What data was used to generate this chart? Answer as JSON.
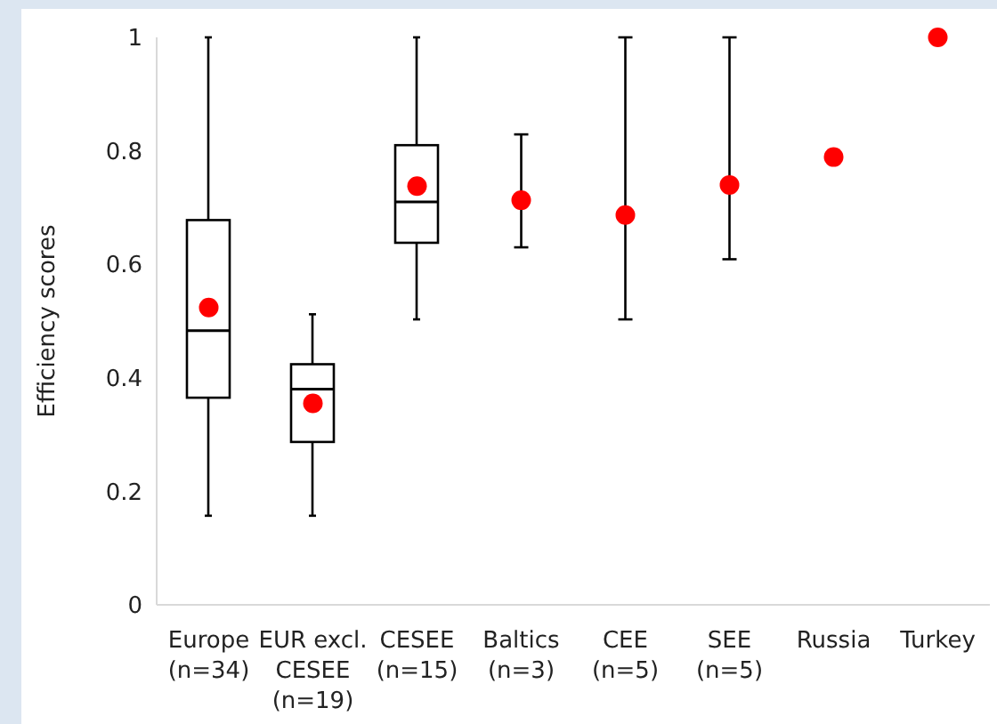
{
  "chart_data": {
    "type": "box",
    "ylabel": "Efficiency scores",
    "categories": [
      "Europe (n=34)",
      "EUR excl. CESEE (n=19)",
      "CESEE (n=15)",
      "Baltics (n=3)",
      "CEE (n=5)",
      "SEE (n=5)",
      "Russia",
      "Turkey"
    ],
    "boxes": [
      {
        "low": 0.157,
        "q1": 0.365,
        "median": 0.483,
        "q3": 0.678,
        "high": 1
      },
      {
        "low": 0.157,
        "q1": 0.287,
        "median": 0.38,
        "q3": 0.424,
        "high": 0.512
      },
      {
        "low": 0.503,
        "q1": 0.638,
        "median": 0.71,
        "q3": 0.81,
        "high": 1
      },
      null,
      null,
      null,
      null,
      null
    ],
    "series": [
      {
        "type": "scatter",
        "color": "#ff0000",
        "values": [
          0.524,
          0.355,
          0.738,
          0.713,
          0.687,
          0.74,
          0.789,
          1
        ],
        "errors": [
          null,
          null,
          null,
          [
            0.63,
            0.829
          ],
          [
            0.503,
            1
          ],
          [
            0.609,
            1
          ],
          null,
          null
        ]
      }
    ],
    "ylim": [
      0,
      1
    ],
    "yticks": [
      0,
      0.2,
      0.4,
      0.6,
      0.8,
      1
    ],
    "marker": "circle"
  }
}
